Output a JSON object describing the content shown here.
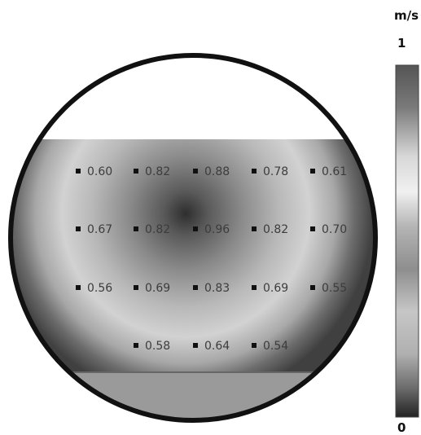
{
  "chart_data": {
    "type": "heatmap",
    "title": "",
    "xlabel": "",
    "ylabel": "",
    "colorbar": {
      "unit": "m/s",
      "max_label": "1",
      "min_label": "0",
      "range": [
        0,
        1
      ]
    },
    "rows": [
      {
        "values": [
          "0.60",
          "0.82",
          "0.88",
          "0.78",
          "0.61"
        ]
      },
      {
        "values": [
          "0.67",
          "0.82",
          "0.96",
          "0.82",
          "0.70"
        ]
      },
      {
        "values": [
          "0.56",
          "0.69",
          "0.83",
          "0.69",
          "0.55"
        ]
      },
      {
        "values": [
          "0.58",
          "0.64",
          "0.54"
        ]
      }
    ]
  }
}
